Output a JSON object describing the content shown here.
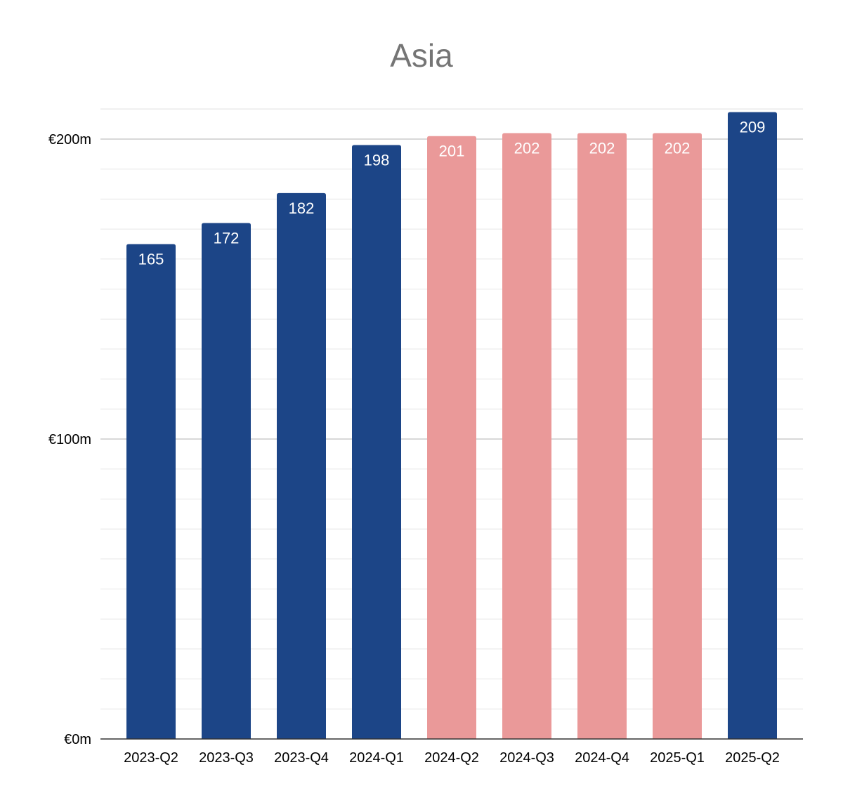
{
  "chart_data": {
    "type": "bar",
    "title": "Asia",
    "xlabel": "",
    "ylabel": "",
    "categories": [
      "2023-Q2",
      "2023-Q3",
      "2023-Q4",
      "2024-Q1",
      "2024-Q2",
      "2024-Q3",
      "2024-Q4",
      "2025-Q1",
      "2025-Q2"
    ],
    "values": [
      165,
      172,
      182,
      198,
      201,
      202,
      202,
      202,
      209
    ],
    "data_labels": [
      "165",
      "172",
      "182",
      "198",
      "201",
      "202",
      "202",
      "202",
      "209"
    ],
    "bar_colors": [
      "#1c4587",
      "#1c4587",
      "#1c4587",
      "#1c4587",
      "#ea9999",
      "#ea9999",
      "#ea9999",
      "#ea9999",
      "#1c4587"
    ],
    "ylim": [
      0,
      210
    ],
    "yticks": [
      {
        "value": 0,
        "label": "€0m"
      },
      {
        "value": 100,
        "label": "€100m"
      },
      {
        "value": 200,
        "label": "€200m"
      }
    ],
    "minor_gridline_step": 10,
    "grid": true,
    "legend": "none"
  }
}
